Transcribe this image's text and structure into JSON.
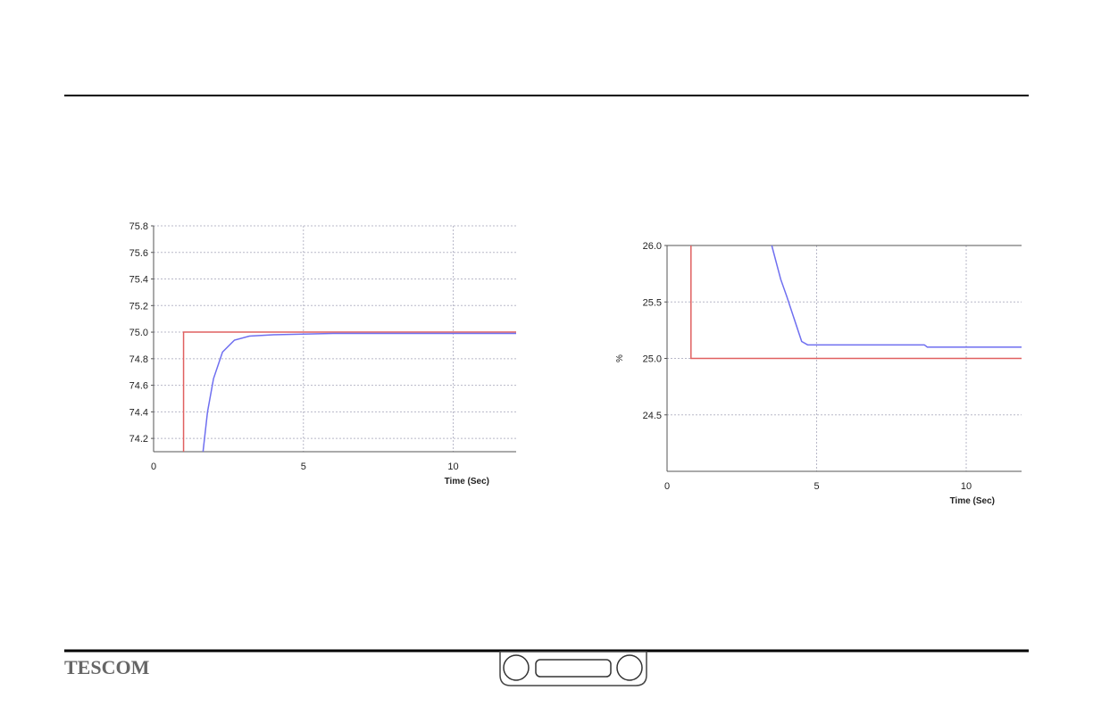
{
  "footer": {
    "brand": "TESCOM"
  },
  "chart_data": [
    {
      "type": "line",
      "x_label": "Time (Sec)",
      "xlim": [
        0,
        12.1
      ],
      "xticks": [
        0,
        5,
        10
      ],
      "ylim": [
        74.1,
        75.8
      ],
      "yticks": [
        74.2,
        74.4,
        74.6,
        74.8,
        {
          "value": 75.0,
          "label": "75.0"
        },
        75.2,
        75.4,
        75.6,
        75.8
      ],
      "grid": true,
      "series": [
        {
          "color": "#e06060",
          "x": [
            1,
            1,
            12.1
          ],
          "values": [
            74.1,
            75.0,
            75.0
          ]
        },
        {
          "color": "#6f6ff0",
          "x": [
            1.65,
            1.8,
            2.0,
            2.3,
            2.7,
            3.2,
            4,
            6,
            12.1
          ],
          "values": [
            74.1,
            74.4,
            74.65,
            74.85,
            74.94,
            74.97,
            74.98,
            74.99,
            74.99
          ]
        }
      ]
    },
    {
      "type": "line",
      "x_label": "Time (Sec)",
      "y_label": "%",
      "xlim": [
        0,
        11.85
      ],
      "xticks": [
        0,
        5,
        10
      ],
      "ylim": [
        24.0,
        26.0
      ],
      "yticks": [
        24.5,
        {
          "value": 25.0,
          "label": "25.0"
        },
        25.5,
        {
          "value": 26.0,
          "label": "26.0"
        }
      ],
      "grid": true,
      "series": [
        {
          "color": "#e06060",
          "x": [
            0.8,
            0.8,
            11.85
          ],
          "values": [
            26.0,
            25.0,
            25.0
          ]
        },
        {
          "color": "#6f6ff0",
          "x": [
            3.5,
            3.8,
            4.0,
            4.5,
            4.7,
            8.6,
            8.7,
            11.85
          ],
          "values": [
            26.0,
            25.7,
            25.55,
            25.15,
            25.12,
            25.12,
            25.1,
            25.1
          ]
        }
      ]
    }
  ]
}
